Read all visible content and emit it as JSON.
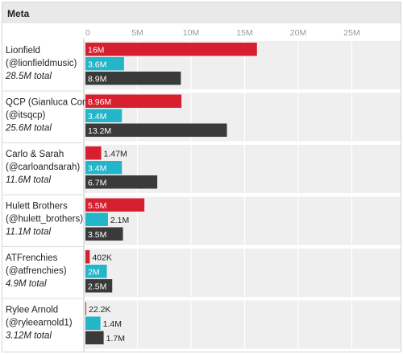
{
  "header": {
    "title": "Meta"
  },
  "colors": {
    "series1": "#d6202f",
    "series2": "#23b5c8",
    "series3": "#3a3a3a",
    "panel": "#efefef",
    "grid": "#ffffff"
  },
  "chart_data": {
    "type": "bar",
    "orientation": "horizontal",
    "title": "Meta",
    "x_ticks": [
      "0",
      "5M",
      "10M",
      "15M",
      "20M",
      "25M"
    ],
    "xlim": [
      0,
      29000000
    ],
    "grid": true,
    "legend": "none",
    "categories": [
      {
        "name": "Lionfield",
        "handle": "(@lionfieldmusic)",
        "total": "28.5M total"
      },
      {
        "name": "QCP (Gianluca Conte)",
        "handle": "(@itsqcp)",
        "total": "25.6M total"
      },
      {
        "name": "Carlo & Sarah",
        "handle": "(@carloandsarah)",
        "total": "11.6M total"
      },
      {
        "name": "Hulett Brothers",
        "handle": "(@hulett_brothers)",
        "total": "11.1M total"
      },
      {
        "name": "ATFrenchies",
        "handle": "(@atfrenchies)",
        "total": "4.9M total"
      },
      {
        "name": "Rylee Arnold",
        "handle": "(@ryleearnold1)",
        "total": "3.12M total"
      }
    ],
    "series": [
      {
        "values": [
          16000000,
          8960000,
          1470000,
          5500000,
          402000,
          22200
        ],
        "labels": [
          "16M",
          "8.96M",
          "1.47M",
          "5.5M",
          "402K",
          "22.2K"
        ]
      },
      {
        "values": [
          3600000,
          3400000,
          3400000,
          2100000,
          2000000,
          1400000
        ],
        "labels": [
          "3.6M",
          "3.4M",
          "3.4M",
          "2.1M",
          "2M",
          "1.4M"
        ]
      },
      {
        "values": [
          8900000,
          13200000,
          6700000,
          3500000,
          2500000,
          1700000
        ],
        "labels": [
          "8.9M",
          "13.2M",
          "6.7M",
          "3.5M",
          "2.5M",
          "1.7M"
        ]
      }
    ]
  }
}
